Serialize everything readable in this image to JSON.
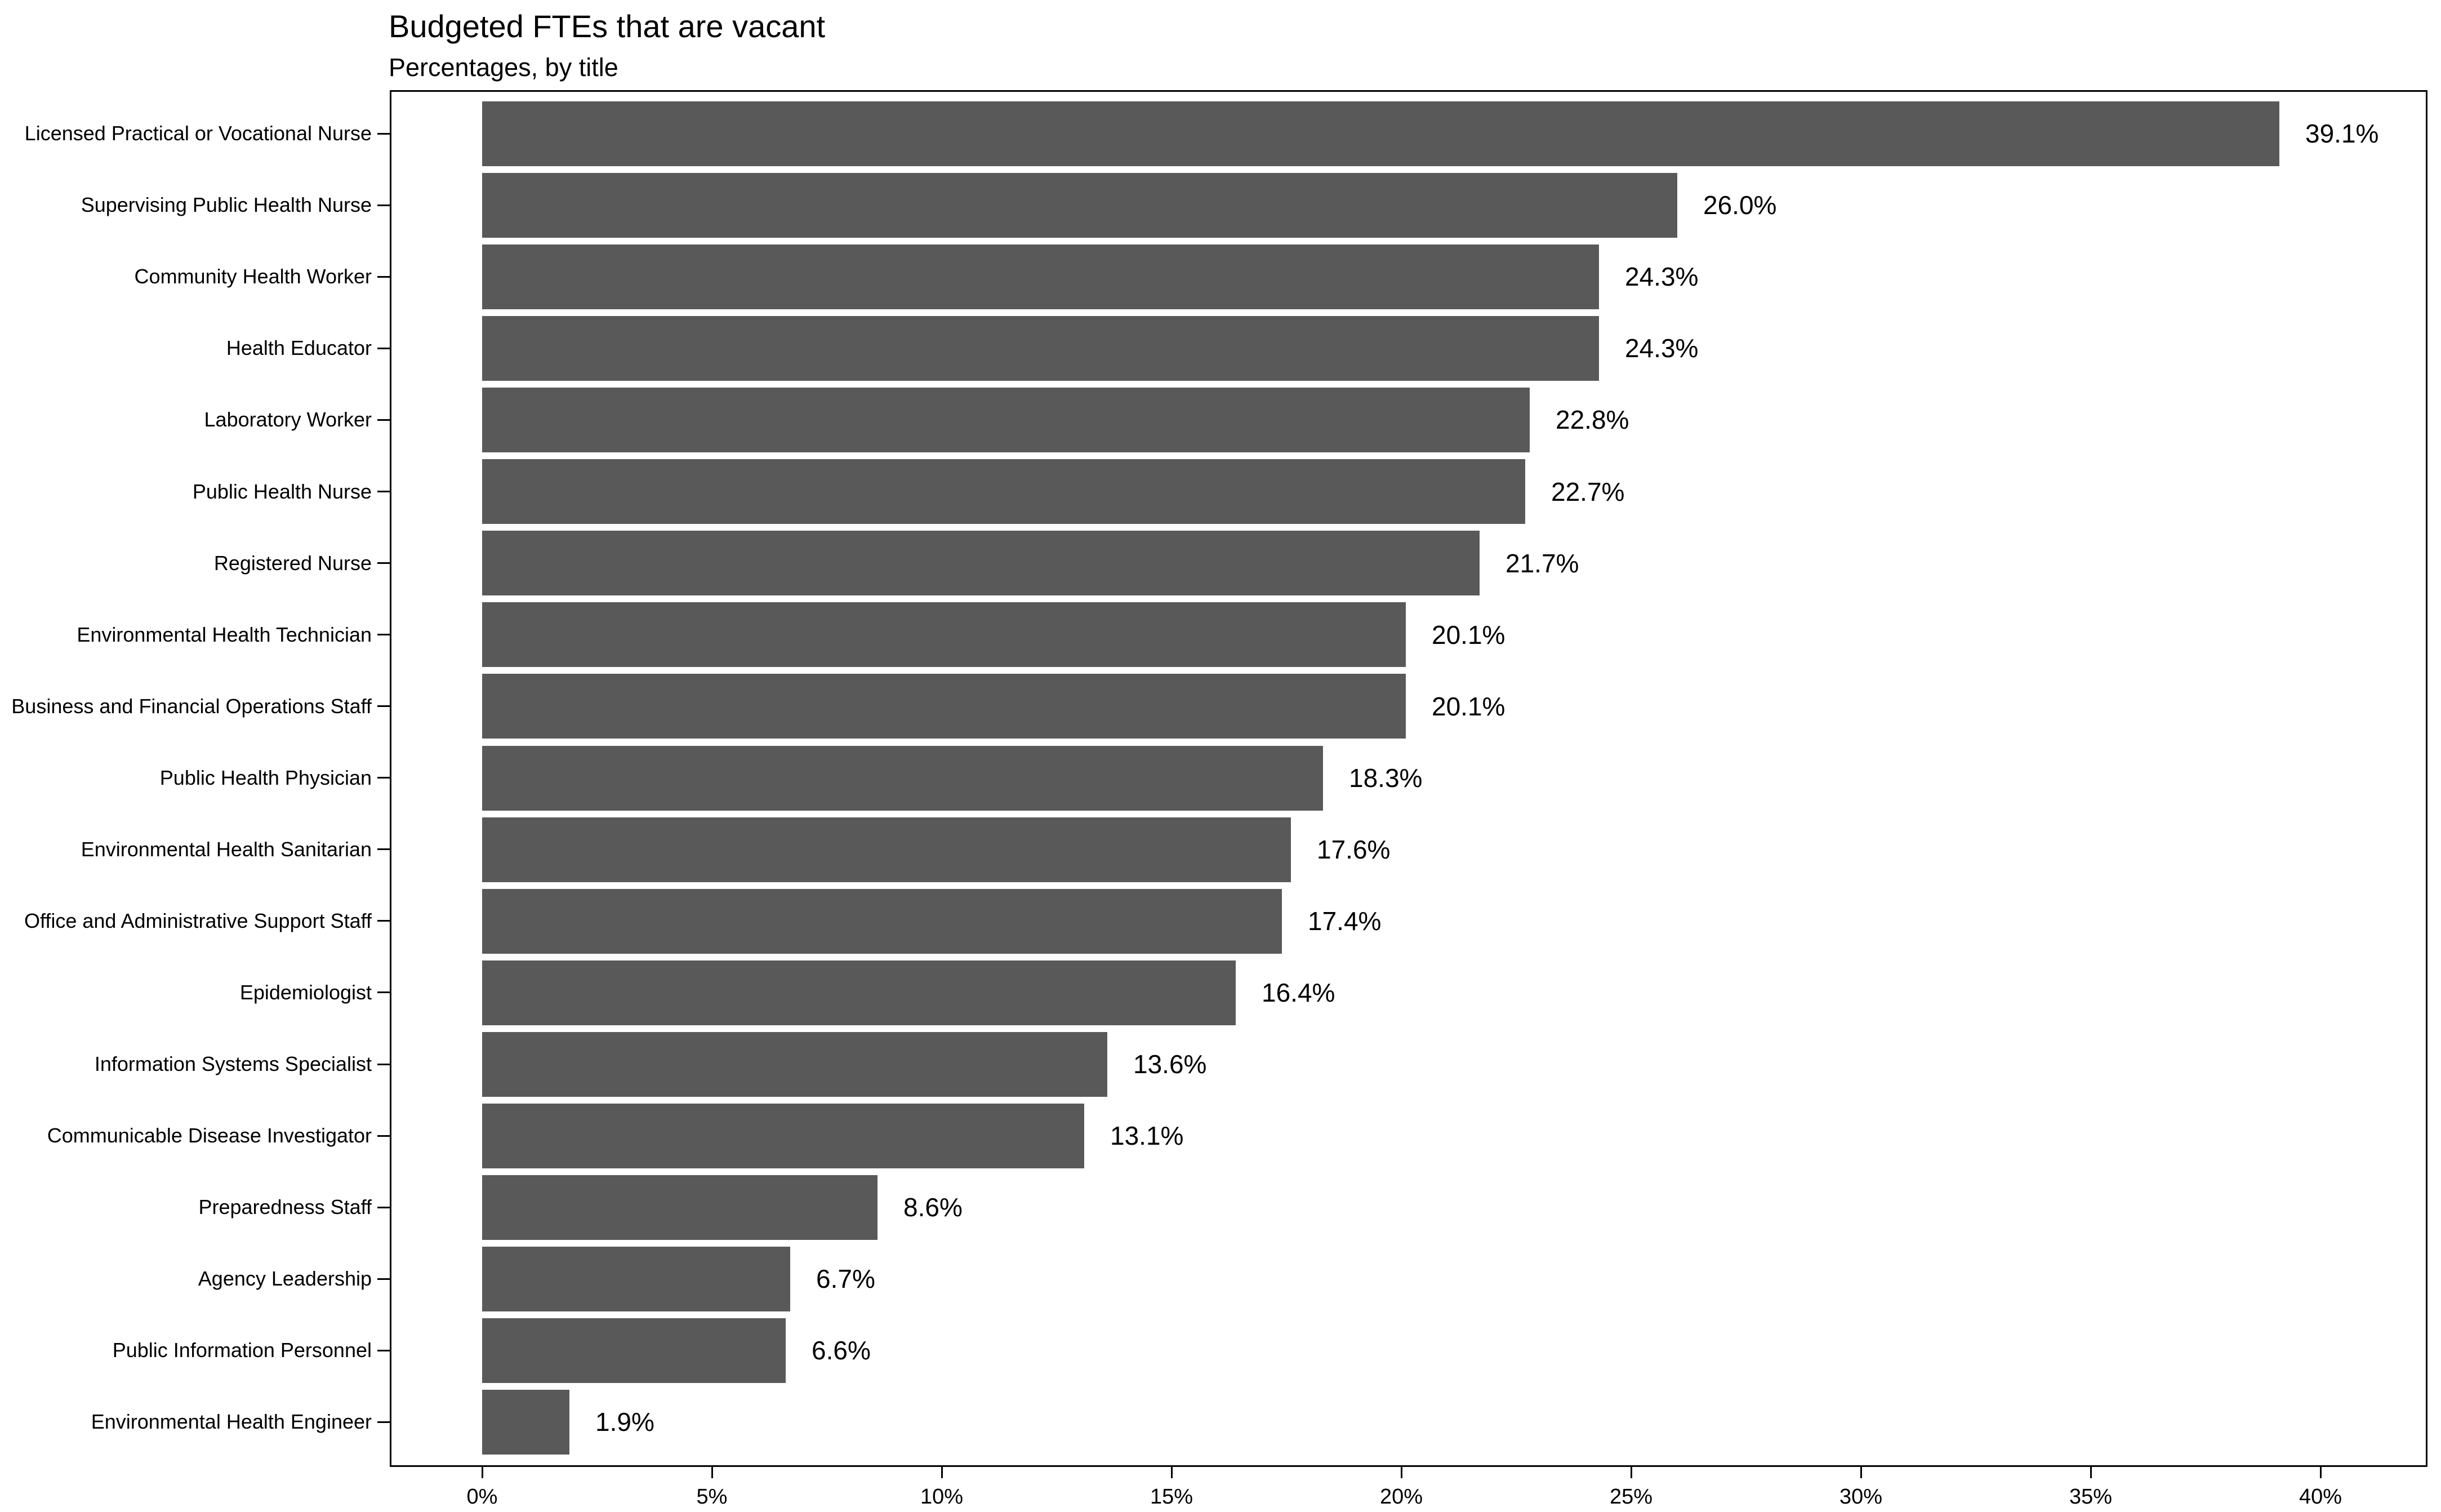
{
  "chart_data": {
    "type": "bar",
    "orientation": "horizontal",
    "title": "Budgeted FTEs that are vacant",
    "subtitle": "Percentages, by title",
    "xlabel": "",
    "ylabel": "",
    "xlim": [
      0,
      40
    ],
    "grid": false,
    "legend_position": "none",
    "bar_color": "#595959",
    "text_color": "#000000",
    "categories": [
      "Licensed Practical or Vocational Nurse",
      "Supervising Public Health Nurse",
      "Community Health Worker",
      "Health Educator",
      "Laboratory Worker",
      "Public Health Nurse",
      "Registered Nurse",
      "Environmental Health Technician",
      "Business and Financial Operations Staff",
      "Public Health Physician",
      "Environmental Health Sanitarian",
      "Office and Administrative Support Staff",
      "Epidemiologist",
      "Information Systems Specialist",
      "Communicable Disease Investigator",
      "Preparedness Staff",
      "Agency Leadership",
      "Public Information Personnel",
      "Environmental Health Engineer"
    ],
    "values": [
      39.1,
      26.0,
      24.3,
      24.3,
      22.8,
      22.7,
      21.7,
      20.1,
      20.1,
      18.3,
      17.6,
      17.4,
      16.4,
      13.6,
      13.1,
      8.6,
      6.7,
      6.6,
      1.9
    ],
    "value_labels": [
      "39.1%",
      "26.0%",
      "24.3%",
      "24.3%",
      "22.8%",
      "22.7%",
      "21.7%",
      "20.1%",
      "20.1%",
      "18.3%",
      "17.6%",
      "17.4%",
      "16.4%",
      "13.6%",
      "13.1%",
      "8.6%",
      "6.7%",
      "6.6%",
      "1.9%"
    ],
    "x_ticks": [
      {
        "value": 0,
        "label": "0%"
      },
      {
        "value": 5,
        "label": "5%"
      },
      {
        "value": 10,
        "label": "10%"
      },
      {
        "value": 15,
        "label": "15%"
      },
      {
        "value": 20,
        "label": "20%"
      },
      {
        "value": 25,
        "label": "25%"
      },
      {
        "value": 30,
        "label": "30%"
      },
      {
        "value": 35,
        "label": "35%"
      },
      {
        "value": 40,
        "label": "40%"
      }
    ]
  }
}
